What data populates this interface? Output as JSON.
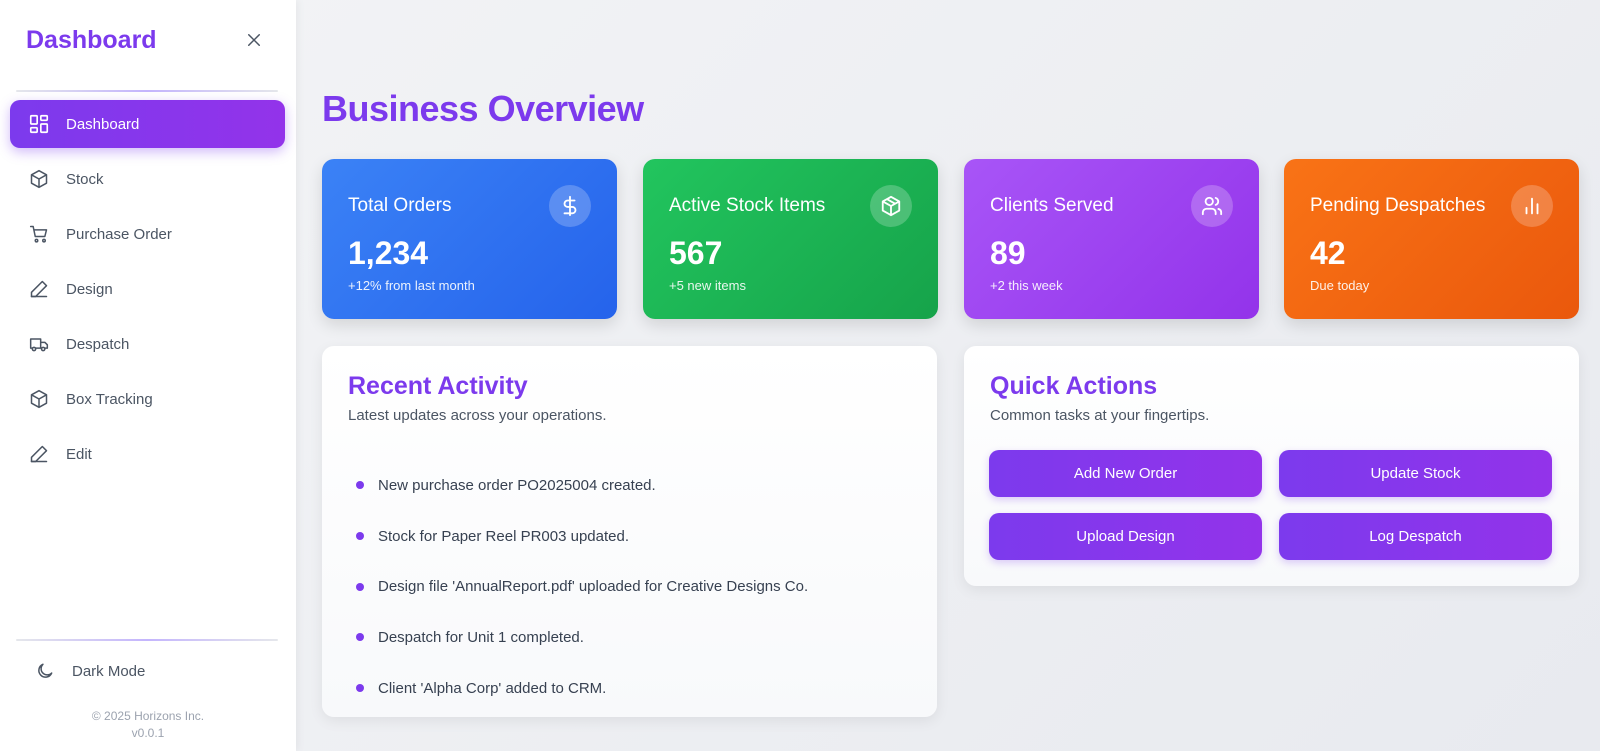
{
  "sidebar": {
    "title": "Dashboard",
    "items": [
      {
        "label": "Dashboard",
        "icon": "dashboard-grid-icon",
        "active": true
      },
      {
        "label": "Stock",
        "icon": "box-icon"
      },
      {
        "label": "Purchase Order",
        "icon": "cart-icon"
      },
      {
        "label": "Design",
        "icon": "pen-icon"
      },
      {
        "label": "Despatch",
        "icon": "truck-icon"
      },
      {
        "label": "Box Tracking",
        "icon": "box-icon"
      },
      {
        "label": "Edit",
        "icon": "pen-icon"
      }
    ],
    "dark_mode_label": "Dark Mode",
    "footer_copyright": "© 2025 Horizons Inc.",
    "footer_version": "v0.0.1"
  },
  "main": {
    "title": "Business Overview",
    "stats": [
      {
        "label": "Total Orders",
        "value": "1,234",
        "sub": "+12% from last month",
        "icon": "dollar-icon",
        "color": "#3b82f6"
      },
      {
        "label": "Active Stock Items",
        "value": "567",
        "sub": "+5 new items",
        "icon": "box-icon",
        "color": "#22c55e"
      },
      {
        "label": "Clients Served",
        "value": "89",
        "sub": "+2 this week",
        "icon": "users-icon",
        "color": "#a855f7"
      },
      {
        "label": "Pending Despatches",
        "value": "42",
        "sub": "Due today",
        "icon": "bar-chart-icon",
        "color": "#f97316"
      }
    ],
    "recent_activity": {
      "title": "Recent Activity",
      "subtitle": "Latest updates across your operations.",
      "items": [
        "New purchase order PO2025004 created.",
        "Stock for Paper Reel PR003 updated.",
        "Design file 'AnnualReport.pdf' uploaded for Creative Designs Co.",
        "Despatch for Unit 1 completed.",
        "Client 'Alpha Corp' added to CRM."
      ]
    },
    "quick_actions": {
      "title": "Quick Actions",
      "subtitle": "Common tasks at your fingertips.",
      "buttons": [
        "Add New Order",
        "Update Stock",
        "Upload Design",
        "Log Despatch"
      ]
    }
  },
  "colors": {
    "accent": "#7c3aed",
    "accent_end": "#9333ea"
  }
}
